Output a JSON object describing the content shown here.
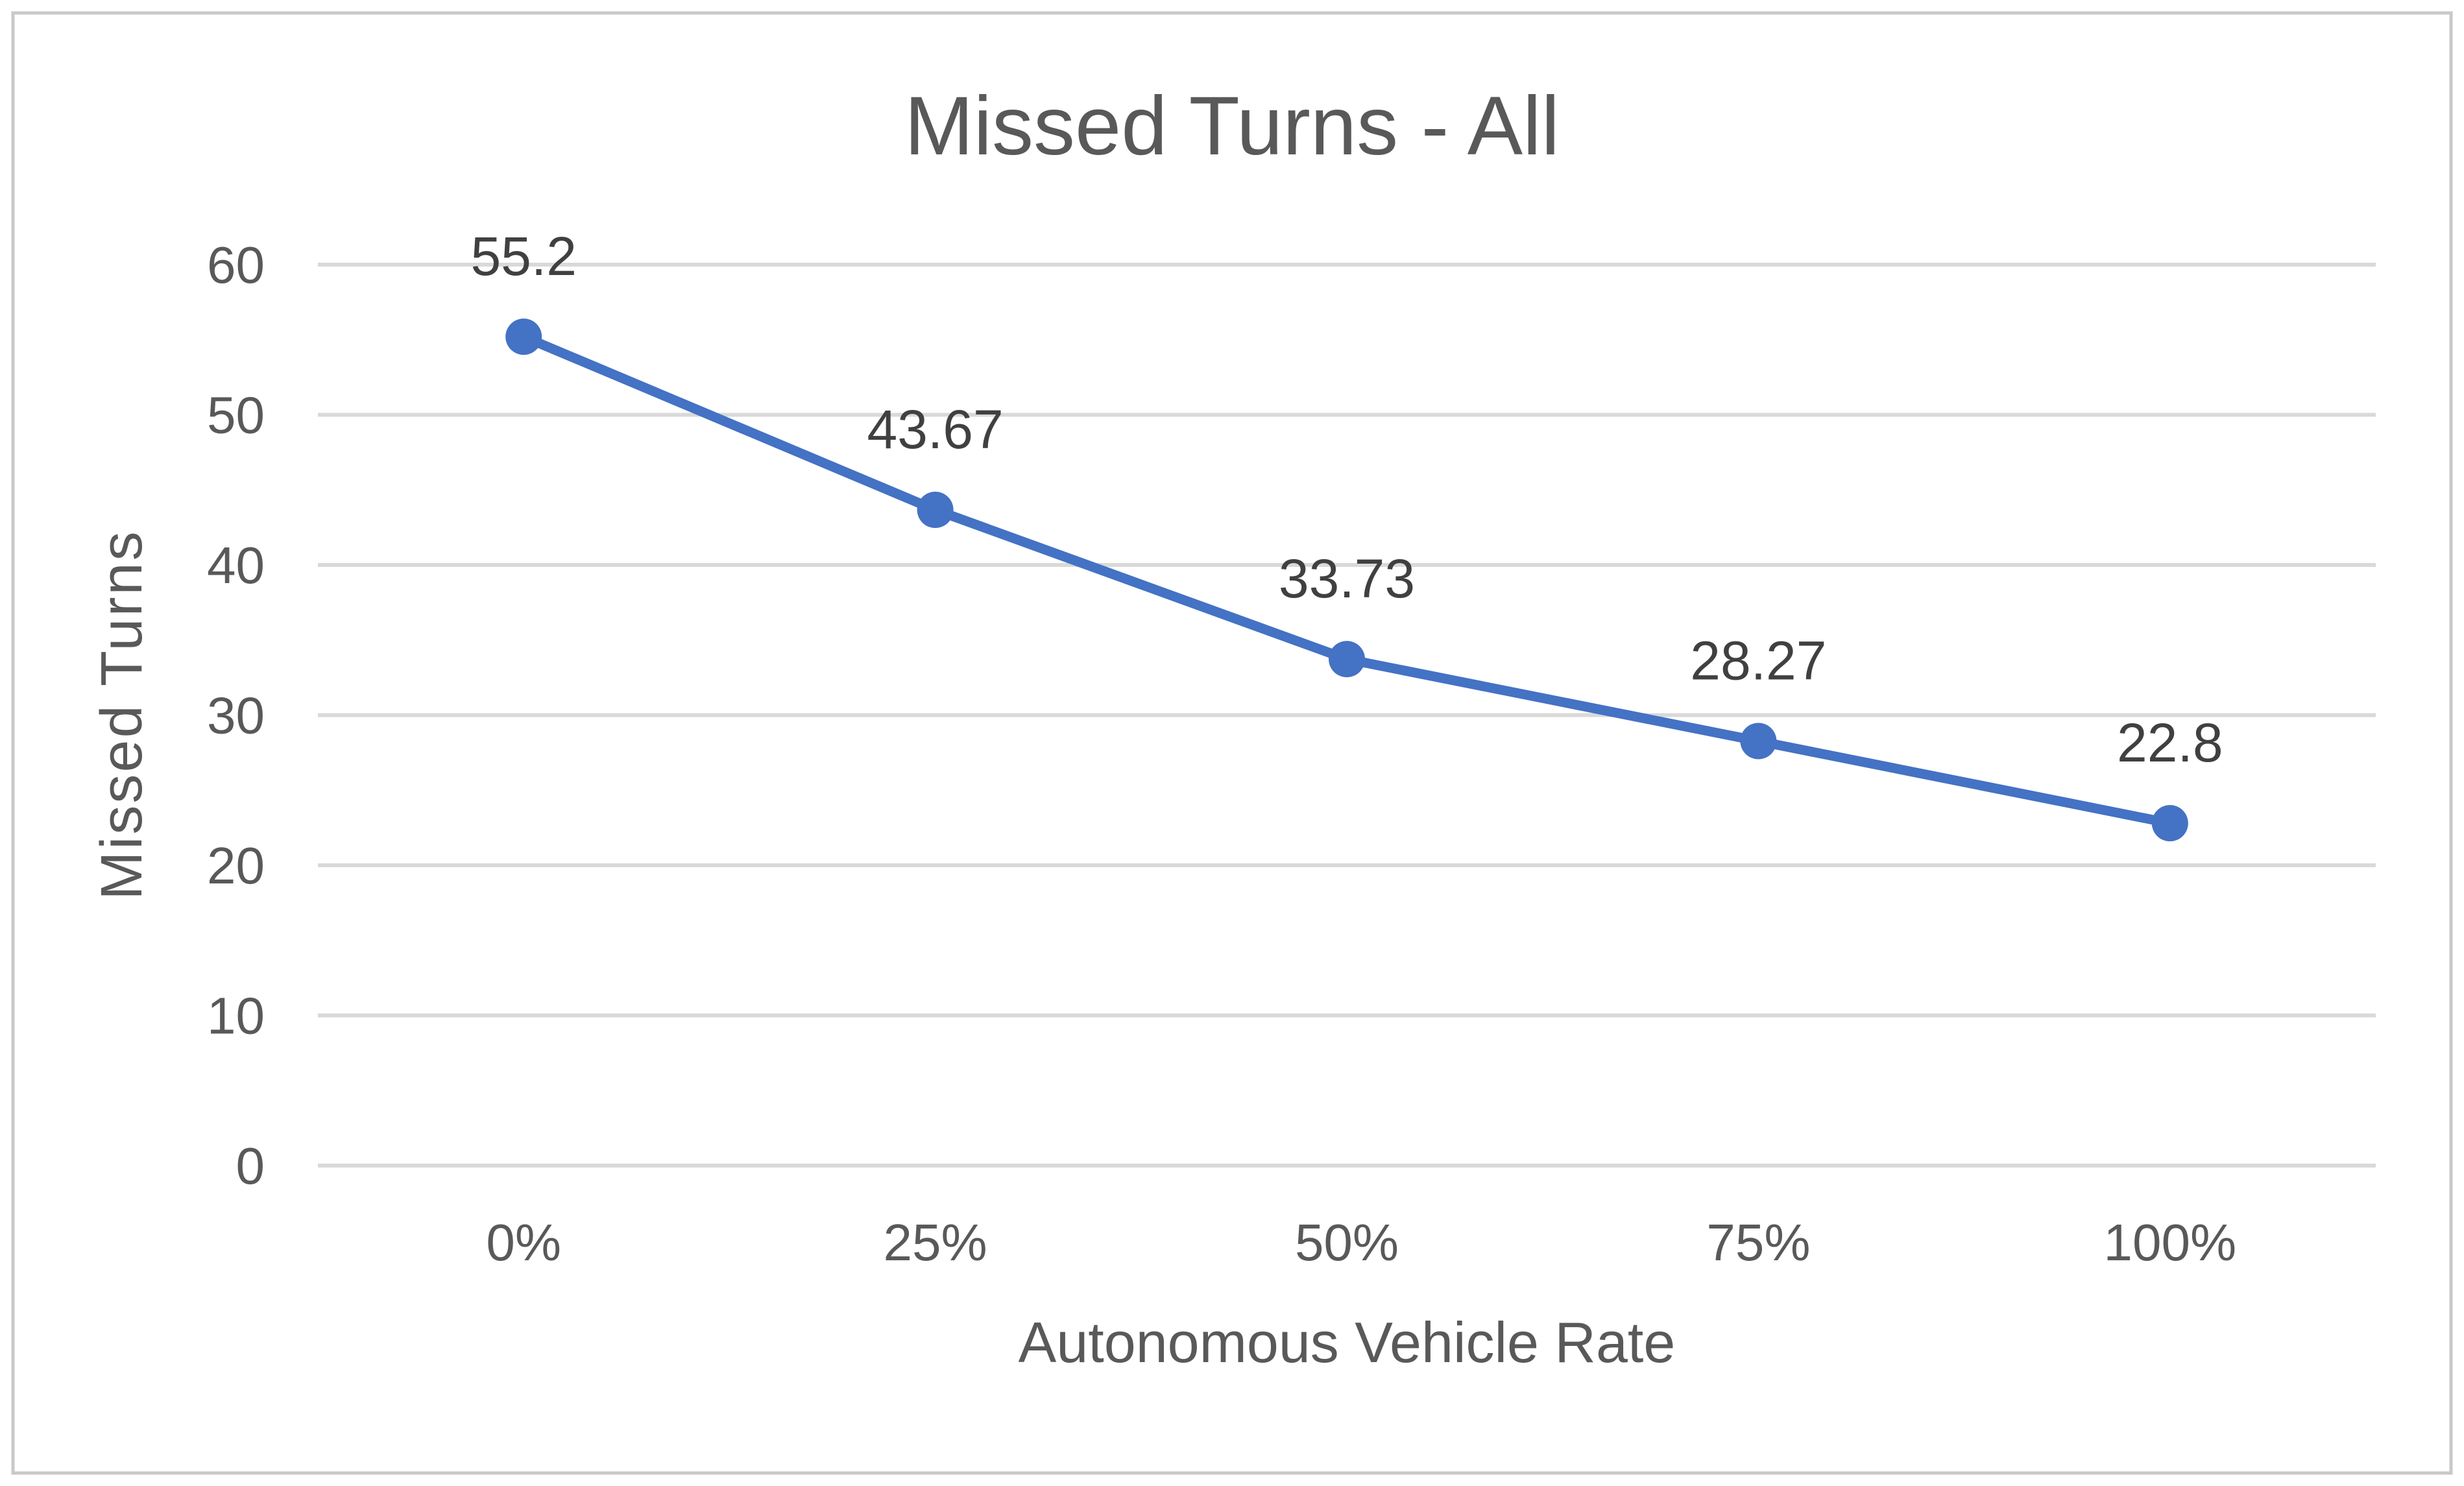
{
  "chart_data": {
    "type": "line",
    "title": "Missed Turns - All",
    "xlabel": "Autonomous Vehicle Rate",
    "ylabel": "Missed Turns",
    "categories": [
      "0%",
      "25%",
      "50%",
      "75%",
      "100%"
    ],
    "series": [
      {
        "name": "Missed Turns",
        "values": [
          55.2,
          43.67,
          33.73,
          28.27,
          22.8
        ],
        "data_labels": [
          "55.2",
          "43.67",
          "33.73",
          "28.27",
          "22.8"
        ]
      }
    ],
    "ylim": [
      0,
      60
    ],
    "y_ticks": [
      "0",
      "10",
      "20",
      "30",
      "40",
      "50",
      "60"
    ],
    "grid": "horizontal",
    "legend": "none",
    "data_label_position": "above",
    "colors": {
      "line": "#4472C4",
      "marker": "#4472C4",
      "gridline": "#D9D9D9",
      "title_text": "#595959",
      "axis_text": "#595959",
      "data_label_text": "#404040",
      "border": "#C9C9C9",
      "background": "#FFFFFF"
    }
  }
}
